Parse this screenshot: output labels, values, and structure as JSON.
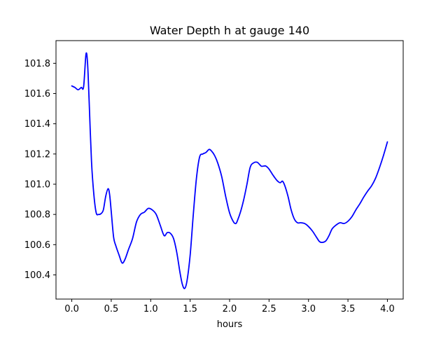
{
  "chart_data": {
    "type": "line",
    "title": "Water Depth h at gauge 140",
    "xlabel": "hours",
    "ylabel": "",
    "xlim": [
      -0.2,
      4.2
    ],
    "ylim": [
      100.24,
      101.95
    ],
    "grid": false,
    "legend": "none",
    "x_ticks": [
      0.0,
      0.5,
      1.0,
      1.5,
      2.0,
      2.5,
      3.0,
      3.5,
      4.0
    ],
    "x_tick_labels": [
      "0.0",
      "0.5",
      "1.0",
      "1.5",
      "2.0",
      "2.5",
      "3.0",
      "3.5",
      "4.0"
    ],
    "y_ticks": [
      100.4,
      100.6,
      100.8,
      101.0,
      101.2,
      101.4,
      101.6,
      101.8
    ],
    "y_tick_labels": [
      "100.4",
      "100.6",
      "100.8",
      "101.0",
      "101.2",
      "101.4",
      "101.6",
      "101.8"
    ],
    "series": [
      {
        "color": "#0000ff",
        "x": [
          0.0,
          0.04,
          0.08,
          0.12,
          0.15,
          0.18,
          0.2,
          0.22,
          0.25,
          0.28,
          0.31,
          0.34,
          0.37,
          0.4,
          0.43,
          0.46,
          0.48,
          0.5,
          0.53,
          0.56,
          0.6,
          0.63,
          0.65,
          0.68,
          0.72,
          0.77,
          0.82,
          0.87,
          0.92,
          0.97,
          1.02,
          1.07,
          1.12,
          1.17,
          1.21,
          1.25,
          1.29,
          1.33,
          1.37,
          1.4,
          1.43,
          1.46,
          1.5,
          1.54,
          1.58,
          1.62,
          1.66,
          1.7,
          1.74,
          1.77,
          1.81,
          1.85,
          1.9,
          1.95,
          2.0,
          2.05,
          2.08,
          2.1,
          2.14,
          2.18,
          2.22,
          2.26,
          2.3,
          2.35,
          2.4,
          2.43,
          2.46,
          2.5,
          2.55,
          2.6,
          2.64,
          2.67,
          2.7,
          2.74,
          2.78,
          2.82,
          2.86,
          2.9,
          2.95,
          3.0,
          3.05,
          3.1,
          3.14,
          3.18,
          3.22,
          3.26,
          3.3,
          3.35,
          3.4,
          3.45,
          3.5,
          3.55,
          3.6,
          3.65,
          3.7,
          3.75,
          3.8,
          3.85,
          3.9,
          3.95,
          4.0
        ],
        "y": [
          101.65,
          101.64,
          101.625,
          101.64,
          101.645,
          101.86,
          101.8,
          101.55,
          101.15,
          100.93,
          100.81,
          100.8,
          100.805,
          100.83,
          100.92,
          100.97,
          100.93,
          100.82,
          100.65,
          100.59,
          100.53,
          100.485,
          100.48,
          100.51,
          100.57,
          100.64,
          100.75,
          100.8,
          100.815,
          100.84,
          100.83,
          100.8,
          100.73,
          100.66,
          100.68,
          100.675,
          100.64,
          100.55,
          100.42,
          100.34,
          100.31,
          100.36,
          100.53,
          100.8,
          101.04,
          101.18,
          101.2,
          101.21,
          101.23,
          101.22,
          101.19,
          101.14,
          101.05,
          100.92,
          100.81,
          100.75,
          100.74,
          100.76,
          100.82,
          100.9,
          101.0,
          101.11,
          101.14,
          101.145,
          101.12,
          101.12,
          101.12,
          101.1,
          101.06,
          101.025,
          101.01,
          101.02,
          100.99,
          100.92,
          100.83,
          100.77,
          100.745,
          100.745,
          100.74,
          100.72,
          100.69,
          100.65,
          100.62,
          100.615,
          100.625,
          100.66,
          100.705,
          100.73,
          100.745,
          100.74,
          100.755,
          100.785,
          100.83,
          100.87,
          100.915,
          100.955,
          100.99,
          101.04,
          101.11,
          101.19,
          101.28
        ]
      }
    ]
  }
}
